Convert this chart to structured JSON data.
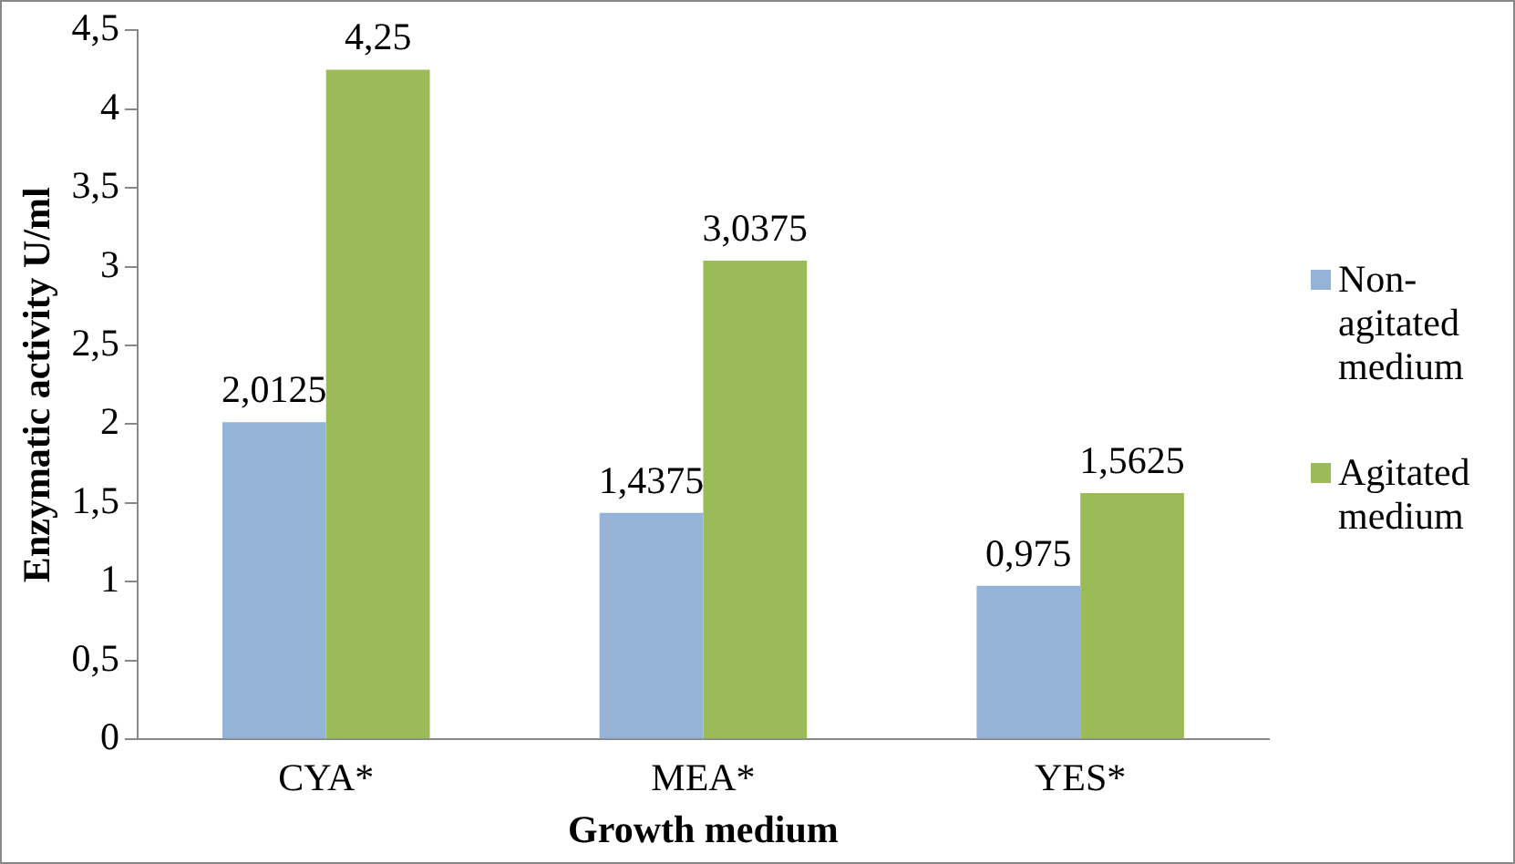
{
  "chart_data": {
    "type": "bar",
    "xlabel": "Growth medium",
    "ylabel": "Enzymatic activity U/ml",
    "categories": [
      "CYA*",
      "MEA*",
      "YES*"
    ],
    "series": [
      {
        "name": "Non-agitated medium",
        "color": "#95b3d7",
        "values": [
          2.0125,
          1.4375,
          0.975
        ],
        "value_labels": [
          "2,0125",
          "1,4375",
          "0,975"
        ]
      },
      {
        "name": "Agitated medium",
        "color": "#9bbb59",
        "values": [
          4.25,
          3.0375,
          1.5625
        ],
        "value_labels": [
          "4,25",
          "3,0375",
          "1,5625"
        ]
      }
    ],
    "ylim": [
      0,
      4.5
    ],
    "yticks": [
      0,
      {
        "value": 0.5,
        "label": "0,5"
      },
      1,
      {
        "value": 1.5,
        "label": "1,5"
      },
      2,
      {
        "value": 2.5,
        "label": "2,5"
      },
      3,
      {
        "value": 3.5,
        "label": "3,5"
      },
      4,
      {
        "value": 4.5,
        "label": "4,5"
      }
    ],
    "grid": false,
    "legend": "right"
  }
}
